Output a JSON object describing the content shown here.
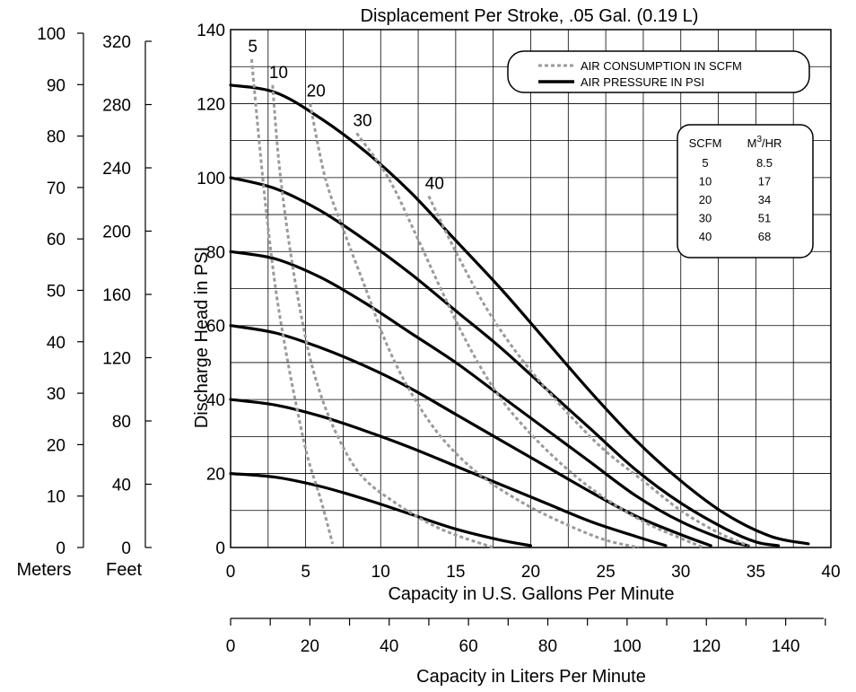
{
  "chart_data": {
    "type": "line",
    "title": "Displacement Per Stroke, .05 Gal. (0.19 L)",
    "xlabel": "Capacity in U.S. Gallons Per Minute",
    "ylabel": "Discharge Head in PSI",
    "xlim": [
      0,
      40
    ],
    "ylim": [
      0,
      140
    ],
    "grid": true,
    "x_ticks": [
      "0",
      "5",
      "10",
      "15",
      "20",
      "25",
      "30",
      "35",
      "40"
    ],
    "y_ticks": [
      "0",
      "20",
      "40",
      "60",
      "80",
      "100",
      "120",
      "140"
    ],
    "secondary_x_axis": {
      "label": "Capacity in Liters Per Minute",
      "ticks": [
        "0",
        "20",
        "40",
        "60",
        "80",
        "100",
        "120",
        "140"
      ]
    },
    "secondary_y_axes": [
      {
        "label": "Meters",
        "ticks": [
          "0",
          "10",
          "20",
          "30",
          "40",
          "50",
          "60",
          "70",
          "80",
          "90",
          "100"
        ]
      },
      {
        "label": "Feet",
        "ticks": [
          "0",
          "40",
          "80",
          "120",
          "160",
          "200",
          "240",
          "280",
          "320"
        ]
      }
    ],
    "legend": {
      "placement": "top-right",
      "entries": [
        {
          "label": "AIR CONSUMPTION IN SCFM",
          "style": "dashed",
          "color": "#9a9a9a"
        },
        {
          "label": "AIR PRESSURE IN PSI",
          "style": "solid",
          "color": "#000000"
        }
      ]
    },
    "conversion_table": {
      "headers": [
        "SCFM",
        "M",
        "3",
        "/HR"
      ],
      "rows": [
        [
          "5",
          "8.5"
        ],
        [
          "10",
          "17"
        ],
        [
          "20",
          "34"
        ],
        [
          "30",
          "51"
        ],
        [
          "40",
          "68"
        ]
      ]
    },
    "pressure_series": [
      {
        "points": [
          [
            0,
            125
          ],
          [
            3,
            123
          ],
          [
            6,
            116
          ],
          [
            9,
            107
          ],
          [
            12,
            96
          ],
          [
            15,
            83
          ],
          [
            18,
            70
          ],
          [
            21,
            56
          ],
          [
            24,
            42
          ],
          [
            27,
            29
          ],
          [
            30,
            18
          ],
          [
            33,
            9
          ],
          [
            36,
            3
          ],
          [
            38.5,
            1
          ]
        ]
      },
      {
        "points": [
          [
            0,
            100
          ],
          [
            3,
            97
          ],
          [
            6,
            91
          ],
          [
            9,
            83
          ],
          [
            12,
            74
          ],
          [
            15,
            64
          ],
          [
            18,
            54
          ],
          [
            21,
            43
          ],
          [
            24,
            32
          ],
          [
            27,
            21
          ],
          [
            30,
            12
          ],
          [
            33,
            5
          ],
          [
            35,
            1.5
          ],
          [
            36.5,
            0.5
          ]
        ]
      },
      {
        "points": [
          [
            0,
            80
          ],
          [
            3,
            78
          ],
          [
            6,
            73
          ],
          [
            9,
            66
          ],
          [
            12,
            58
          ],
          [
            15,
            50
          ],
          [
            18,
            41
          ],
          [
            21,
            32
          ],
          [
            24,
            23
          ],
          [
            27,
            14
          ],
          [
            30,
            7
          ],
          [
            33,
            2
          ],
          [
            34.5,
            0.5
          ]
        ]
      },
      {
        "points": [
          [
            0,
            60
          ],
          [
            3,
            58
          ],
          [
            6,
            54
          ],
          [
            9,
            49
          ],
          [
            12,
            43
          ],
          [
            15,
            36
          ],
          [
            18,
            29
          ],
          [
            21,
            22
          ],
          [
            24,
            15
          ],
          [
            27,
            8.5
          ],
          [
            30,
            3.5
          ],
          [
            32,
            0.5
          ]
        ]
      },
      {
        "points": [
          [
            0,
            40
          ],
          [
            3,
            38.5
          ],
          [
            6,
            35.5
          ],
          [
            9,
            31.5
          ],
          [
            12,
            27
          ],
          [
            15,
            22
          ],
          [
            18,
            17
          ],
          [
            21,
            12
          ],
          [
            24,
            7
          ],
          [
            27,
            3
          ],
          [
            29,
            0.5
          ]
        ]
      },
      {
        "points": [
          [
            0,
            20
          ],
          [
            3,
            19
          ],
          [
            6,
            16.5
          ],
          [
            9,
            13
          ],
          [
            12,
            9
          ],
          [
            15,
            5
          ],
          [
            18,
            2
          ],
          [
            20,
            0.5
          ]
        ]
      }
    ],
    "air_series": [
      {
        "name": "5",
        "points": [
          [
            1.4,
            132
          ],
          [
            1.9,
            110
          ],
          [
            2.4,
            90
          ],
          [
            3,
            70
          ],
          [
            3.6,
            55
          ],
          [
            4.3,
            40
          ],
          [
            5.1,
            25
          ],
          [
            6,
            13
          ],
          [
            6.8,
            1
          ]
        ]
      },
      {
        "name": "10",
        "points": [
          [
            2.8,
            125
          ],
          [
            3.2,
            105
          ],
          [
            3.8,
            85
          ],
          [
            4.6,
            65
          ],
          [
            5.5,
            48
          ],
          [
            6.8,
            33
          ],
          [
            8.6,
            20
          ],
          [
            11,
            12
          ],
          [
            14,
            5
          ],
          [
            17.5,
            0
          ]
        ]
      },
      {
        "name": "20",
        "points": [
          [
            5.3,
            120
          ],
          [
            6.3,
            100
          ],
          [
            7.6,
            85
          ],
          [
            9,
            70
          ],
          [
            10.4,
            55
          ],
          [
            12,
            42
          ],
          [
            14,
            30
          ],
          [
            16.5,
            20
          ],
          [
            19.5,
            12
          ],
          [
            22.5,
            6
          ],
          [
            25,
            2
          ],
          [
            27.2,
            0
          ]
        ]
      },
      {
        "name": "30",
        "points": [
          [
            8.4,
            112
          ],
          [
            10.5,
            100
          ],
          [
            12.3,
            85
          ],
          [
            14,
            70
          ],
          [
            15.8,
            55
          ],
          [
            17.7,
            42
          ],
          [
            19.7,
            32
          ],
          [
            22.2,
            22
          ],
          [
            24.7,
            14
          ],
          [
            27.5,
            7
          ],
          [
            30,
            2.5
          ],
          [
            31.5,
            0
          ]
        ]
      },
      {
        "name": "40",
        "points": [
          [
            13.2,
            95
          ],
          [
            15,
            80
          ],
          [
            17,
            65
          ],
          [
            19,
            53
          ],
          [
            21,
            43
          ],
          [
            23,
            34
          ],
          [
            25,
            26
          ],
          [
            27.5,
            18
          ],
          [
            30,
            10
          ],
          [
            32.5,
            4
          ],
          [
            34.5,
            0.5
          ]
        ]
      }
    ]
  }
}
